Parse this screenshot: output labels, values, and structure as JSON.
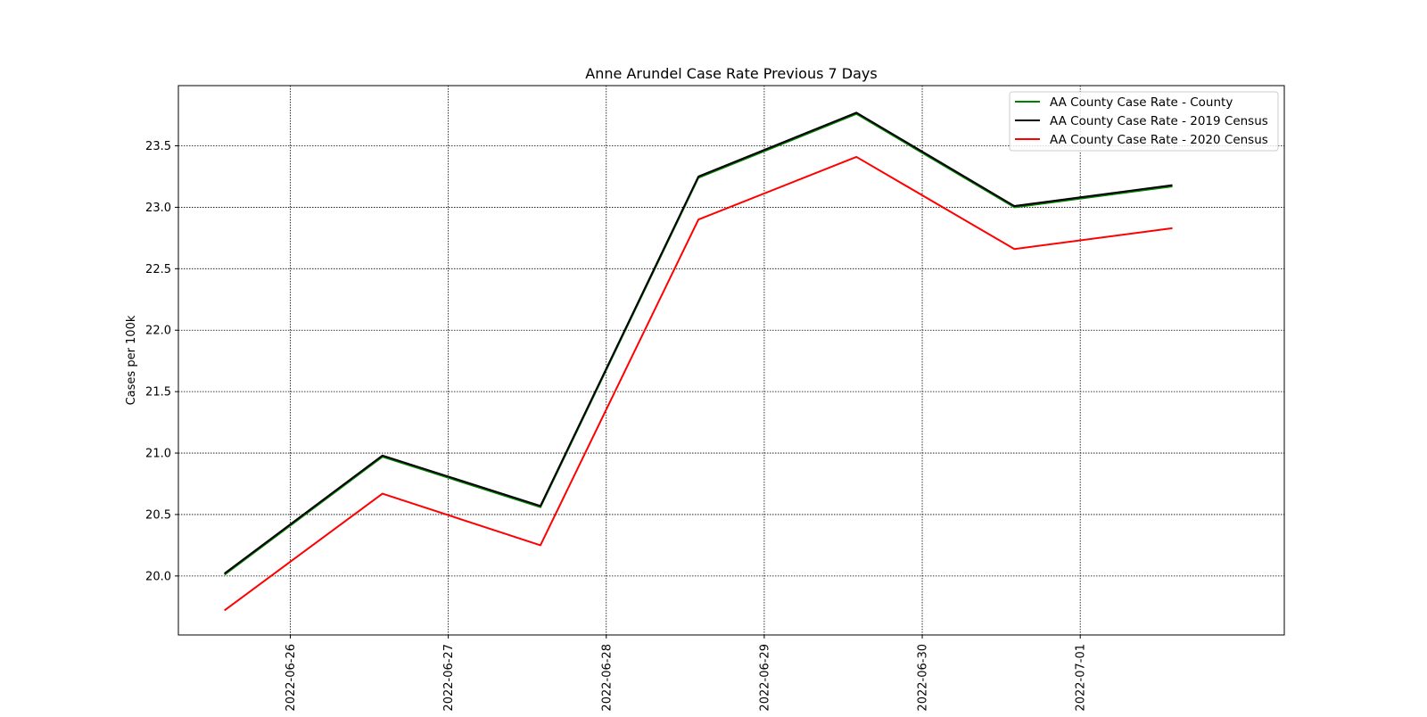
{
  "chart_data": {
    "type": "line",
    "title": "Anne Arundel Case Rate Previous 7 Days",
    "xlabel": "",
    "ylabel": "Cases per 100k",
    "x": [
      "2022-06-25T14:00",
      "2022-06-26T14:00",
      "2022-06-27T14:00",
      "2022-06-28T14:00",
      "2022-06-29T14:00",
      "2022-06-30T14:00",
      "2022-07-01T14:00"
    ],
    "xlim": [
      "2022-06-25T07:00",
      "2022-07-02T07:00"
    ],
    "x_ticks": [
      "2022-06-26",
      "2022-06-27",
      "2022-06-28",
      "2022-06-29",
      "2022-06-30",
      "2022-07-01"
    ],
    "ylim": [
      19.52,
      23.99
    ],
    "y_ticks": [
      "20.0",
      "20.5",
      "21.0",
      "21.5",
      "22.0",
      "22.5",
      "23.0",
      "23.5"
    ],
    "grid": true,
    "legend_position": "top-right",
    "series": [
      {
        "name": "AA County Case Rate - County",
        "color": "#008000",
        "values": [
          20.01,
          20.97,
          20.56,
          23.24,
          23.76,
          23.0,
          23.17
        ]
      },
      {
        "name": "AA County Case Rate - 2019 Census",
        "color": "#000000",
        "values": [
          20.02,
          20.98,
          20.57,
          23.25,
          23.77,
          23.01,
          23.18
        ]
      },
      {
        "name": "AA County Case Rate - 2020 Census",
        "color": "#ff0000",
        "values": [
          19.72,
          20.67,
          20.25,
          22.9,
          23.41,
          22.66,
          22.83
        ]
      }
    ]
  }
}
